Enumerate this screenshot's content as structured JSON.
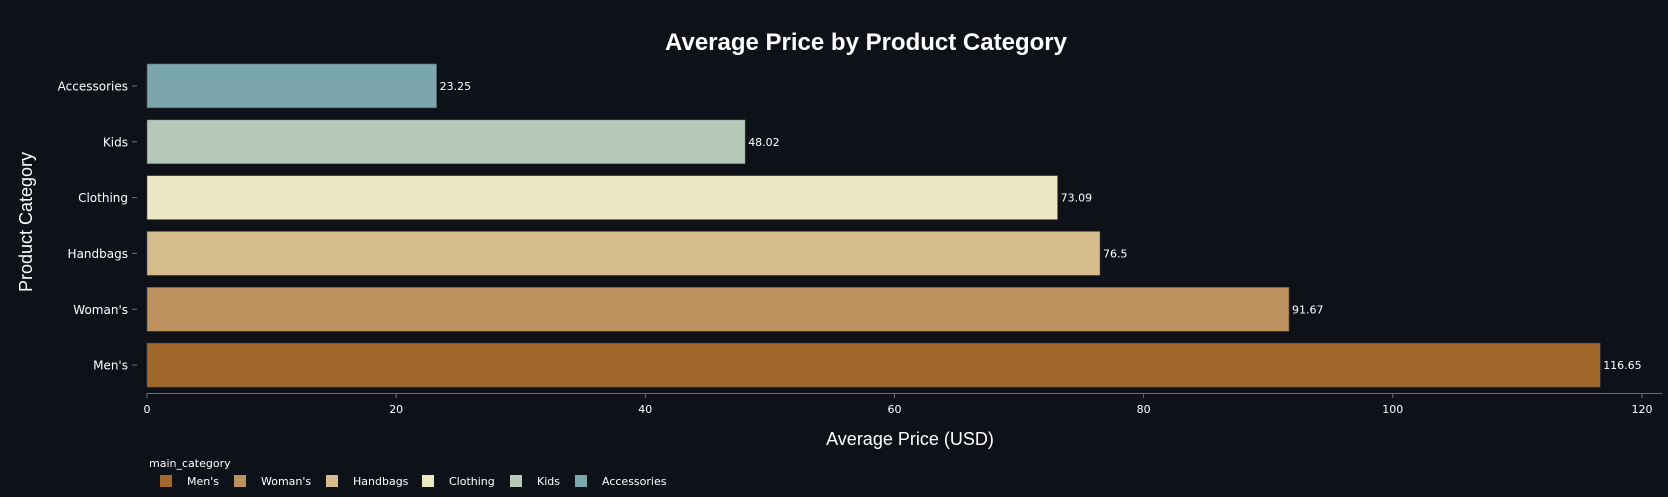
{
  "chart_data": {
    "type": "bar",
    "orientation": "horizontal",
    "title": "Average Price by Product Category",
    "xlabel": "Average Price (USD)",
    "ylabel": "Product Category",
    "xlim": [
      0,
      122
    ],
    "x_ticks": [
      0,
      20,
      40,
      60,
      80,
      100,
      120
    ],
    "grid": false,
    "categories": [
      "Accessories",
      "Kids",
      "Clothing",
      "Handbags",
      "Woman's",
      "Men's"
    ],
    "values": [
      23.25,
      48.02,
      73.09,
      76.5,
      91.67,
      116.65
    ],
    "data_labels": [
      "23.25",
      "48.02",
      "73.09",
      "76.5",
      "91.67",
      "116.65"
    ],
    "colors": [
      "#7ba7ac",
      "#b5c9b9",
      "#ede8c4",
      "#d5bc8c",
      "#bd915d",
      "#a0692b"
    ],
    "legend": {
      "title": "main_category",
      "placement": "bottom-left",
      "items": [
        {
          "label": "Men's",
          "color": "#a0692b"
        },
        {
          "label": "Woman's",
          "color": "#bd915d"
        },
        {
          "label": "Handbags",
          "color": "#d5bc8c"
        },
        {
          "label": "Clothing",
          "color": "#ede8c4"
        },
        {
          "label": "Kids",
          "color": "#b5c9b9"
        },
        {
          "label": "Accessories",
          "color": "#7ba7ac"
        }
      ]
    },
    "background_color": "#0e1117",
    "axis_color": "#6b7080"
  }
}
